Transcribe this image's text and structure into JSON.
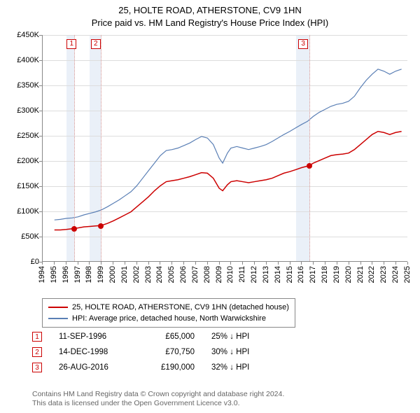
{
  "title_line1": "25, HOLTE ROAD, ATHERSTONE, CV9 1HN",
  "title_line2": "Price paid vs. HM Land Registry's House Price Index (HPI)",
  "chart": {
    "type": "line",
    "background_color": "#ffffff",
    "grid_color": "#dddddd",
    "axis_color": "#888888",
    "x_min": 1994,
    "x_max": 2025,
    "y_min": 0,
    "y_max": 450000,
    "y_ticks": [
      0,
      50000,
      100000,
      150000,
      200000,
      250000,
      300000,
      350000,
      400000,
      450000
    ],
    "y_tick_labels": [
      "£0",
      "£50K",
      "£100K",
      "£150K",
      "£200K",
      "£250K",
      "£300K",
      "£350K",
      "£400K",
      "£450K"
    ],
    "x_ticks": [
      1994,
      1995,
      1996,
      1997,
      1998,
      1999,
      2000,
      2001,
      2002,
      2003,
      2004,
      2005,
      2006,
      2007,
      2008,
      2009,
      2010,
      2011,
      2012,
      2013,
      2014,
      2015,
      2016,
      2017,
      2018,
      2019,
      2020,
      2021,
      2022,
      2023,
      2024,
      2025
    ],
    "band_color": "#eaf0f8",
    "bands": [
      {
        "from": 1996.0,
        "to": 1996.7
      },
      {
        "from": 1998.0,
        "to": 1998.95
      },
      {
        "from": 2015.5,
        "to": 2016.65
      }
    ],
    "vline_dot_color": "#cc8888",
    "vlines": [
      1996.7,
      1998.95,
      2016.65
    ],
    "marker_boxes": [
      {
        "x": 1996.45,
        "label": "1"
      },
      {
        "x": 1998.5,
        "label": "2"
      },
      {
        "x": 2016.1,
        "label": "3"
      }
    ]
  },
  "series": [
    {
      "name": "25, HOLTE ROAD, ATHERSTONE, CV9 1HN (detached house)",
      "color": "#cc0000",
      "width": 1.5,
      "points_dot_color": "#cc0000",
      "sale_points": [
        {
          "x": 1996.7,
          "y": 65000
        },
        {
          "x": 1998.95,
          "y": 70750
        },
        {
          "x": 2016.65,
          "y": 190000
        }
      ],
      "line": [
        [
          1995.0,
          62000
        ],
        [
          1995.5,
          62000
        ],
        [
          1996.0,
          63000
        ],
        [
          1996.7,
          65000
        ],
        [
          1997.0,
          66000
        ],
        [
          1997.5,
          68000
        ],
        [
          1998.0,
          69000
        ],
        [
          1998.5,
          70000
        ],
        [
          1998.95,
          70750
        ],
        [
          1999.5,
          75000
        ],
        [
          2000.0,
          80000
        ],
        [
          2000.5,
          86000
        ],
        [
          2001.0,
          92000
        ],
        [
          2001.5,
          98000
        ],
        [
          2002.0,
          108000
        ],
        [
          2002.5,
          118000
        ],
        [
          2003.0,
          128000
        ],
        [
          2003.5,
          140000
        ],
        [
          2004.0,
          150000
        ],
        [
          2004.5,
          158000
        ],
        [
          2005.0,
          160000
        ],
        [
          2005.5,
          162000
        ],
        [
          2006.0,
          165000
        ],
        [
          2006.5,
          168000
        ],
        [
          2007.0,
          172000
        ],
        [
          2007.5,
          176000
        ],
        [
          2008.0,
          175000
        ],
        [
          2008.5,
          165000
        ],
        [
          2009.0,
          145000
        ],
        [
          2009.3,
          140000
        ],
        [
          2009.7,
          152000
        ],
        [
          2010.0,
          158000
        ],
        [
          2010.5,
          160000
        ],
        [
          2011.0,
          158000
        ],
        [
          2011.5,
          156000
        ],
        [
          2012.0,
          158000
        ],
        [
          2012.5,
          160000
        ],
        [
          2013.0,
          162000
        ],
        [
          2013.5,
          165000
        ],
        [
          2014.0,
          170000
        ],
        [
          2014.5,
          175000
        ],
        [
          2015.0,
          178000
        ],
        [
          2015.5,
          182000
        ],
        [
          2016.0,
          186000
        ],
        [
          2016.65,
          190000
        ],
        [
          2017.0,
          195000
        ],
        [
          2017.5,
          200000
        ],
        [
          2018.0,
          205000
        ],
        [
          2018.5,
          210000
        ],
        [
          2019.0,
          212000
        ],
        [
          2019.5,
          213000
        ],
        [
          2020.0,
          215000
        ],
        [
          2020.5,
          222000
        ],
        [
          2021.0,
          232000
        ],
        [
          2021.5,
          242000
        ],
        [
          2022.0,
          252000
        ],
        [
          2022.5,
          258000
        ],
        [
          2023.0,
          256000
        ],
        [
          2023.5,
          252000
        ],
        [
          2024.0,
          256000
        ],
        [
          2024.5,
          258000
        ]
      ]
    },
    {
      "name": "HPI: Average price, detached house, North Warwickshire",
      "color": "#5a7fb5",
      "width": 1.2,
      "line": [
        [
          1995.0,
          82000
        ],
        [
          1995.5,
          83000
        ],
        [
          1996.0,
          85000
        ],
        [
          1996.5,
          86000
        ],
        [
          1997.0,
          88000
        ],
        [
          1997.5,
          92000
        ],
        [
          1998.0,
          95000
        ],
        [
          1998.5,
          98000
        ],
        [
          1999.0,
          102000
        ],
        [
          1999.5,
          108000
        ],
        [
          2000.0,
          115000
        ],
        [
          2000.5,
          122000
        ],
        [
          2001.0,
          130000
        ],
        [
          2001.5,
          138000
        ],
        [
          2002.0,
          150000
        ],
        [
          2002.5,
          165000
        ],
        [
          2003.0,
          180000
        ],
        [
          2003.5,
          195000
        ],
        [
          2004.0,
          210000
        ],
        [
          2004.5,
          220000
        ],
        [
          2005.0,
          222000
        ],
        [
          2005.5,
          225000
        ],
        [
          2006.0,
          230000
        ],
        [
          2006.5,
          235000
        ],
        [
          2007.0,
          242000
        ],
        [
          2007.5,
          248000
        ],
        [
          2008.0,
          245000
        ],
        [
          2008.5,
          232000
        ],
        [
          2009.0,
          205000
        ],
        [
          2009.3,
          195000
        ],
        [
          2009.7,
          215000
        ],
        [
          2010.0,
          225000
        ],
        [
          2010.5,
          228000
        ],
        [
          2011.0,
          225000
        ],
        [
          2011.5,
          222000
        ],
        [
          2012.0,
          225000
        ],
        [
          2012.5,
          228000
        ],
        [
          2013.0,
          232000
        ],
        [
          2013.5,
          238000
        ],
        [
          2014.0,
          245000
        ],
        [
          2014.5,
          252000
        ],
        [
          2015.0,
          258000
        ],
        [
          2015.5,
          265000
        ],
        [
          2016.0,
          272000
        ],
        [
          2016.5,
          278000
        ],
        [
          2017.0,
          288000
        ],
        [
          2017.5,
          296000
        ],
        [
          2018.0,
          302000
        ],
        [
          2018.5,
          308000
        ],
        [
          2019.0,
          312000
        ],
        [
          2019.5,
          314000
        ],
        [
          2020.0,
          318000
        ],
        [
          2020.5,
          328000
        ],
        [
          2021.0,
          345000
        ],
        [
          2021.5,
          360000
        ],
        [
          2022.0,
          372000
        ],
        [
          2022.5,
          382000
        ],
        [
          2023.0,
          378000
        ],
        [
          2023.5,
          372000
        ],
        [
          2024.0,
          378000
        ],
        [
          2024.5,
          382000
        ]
      ]
    }
  ],
  "legend": {
    "row1_label": "25, HOLTE ROAD, ATHERSTONE, CV9 1HN (detached house)",
    "row2_label": "HPI: Average price, detached house, North Warwickshire"
  },
  "events": [
    {
      "n": "1",
      "date": "11-SEP-1996",
      "price": "£65,000",
      "pct": "25% ↓ HPI"
    },
    {
      "n": "2",
      "date": "14-DEC-1998",
      "price": "£70,750",
      "pct": "30% ↓ HPI"
    },
    {
      "n": "3",
      "date": "26-AUG-2016",
      "price": "£190,000",
      "pct": "32% ↓ HPI"
    }
  ],
  "footer_line1": "Contains HM Land Registry data © Crown copyright and database right 2024.",
  "footer_line2": "This data is licensed under the Open Government Licence v3.0."
}
